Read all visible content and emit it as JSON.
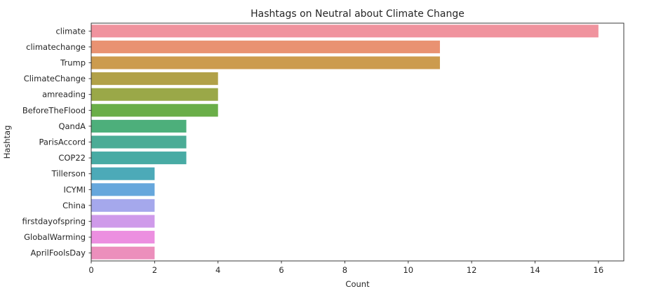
{
  "chart_data": {
    "type": "bar",
    "orientation": "horizontal",
    "title": "Hashtags on Neutral about Climate Change",
    "xlabel": "Count",
    "ylabel": "Hashtag",
    "xlim": [
      0,
      16.8
    ],
    "xticks": [
      0,
      2,
      4,
      6,
      8,
      10,
      12,
      14,
      16
    ],
    "grid": false,
    "categories": [
      "climate",
      "climatechange",
      "Trump",
      "ClimateChange",
      "amreading",
      "BeforeTheFlood",
      "QandA",
      "ParisAccord",
      "COP22",
      "Tillerson",
      "ICYMI",
      "China",
      "firstdayofspring",
      "GlobalWarming",
      "AprilFoolsDay"
    ],
    "values": [
      16,
      11,
      11,
      4,
      4,
      4,
      3,
      3,
      3,
      2,
      2,
      2,
      2,
      2,
      2
    ],
    "colors": [
      "#f0939e",
      "#e99272",
      "#cc9b4e",
      "#b1a148",
      "#9aa848",
      "#6aae48",
      "#4daf7b",
      "#4bac96",
      "#48aba4",
      "#4caab8",
      "#66a7dc",
      "#a5a8ec",
      "#cf9aea",
      "#ec8fe0",
      "#ec8fbc"
    ]
  }
}
